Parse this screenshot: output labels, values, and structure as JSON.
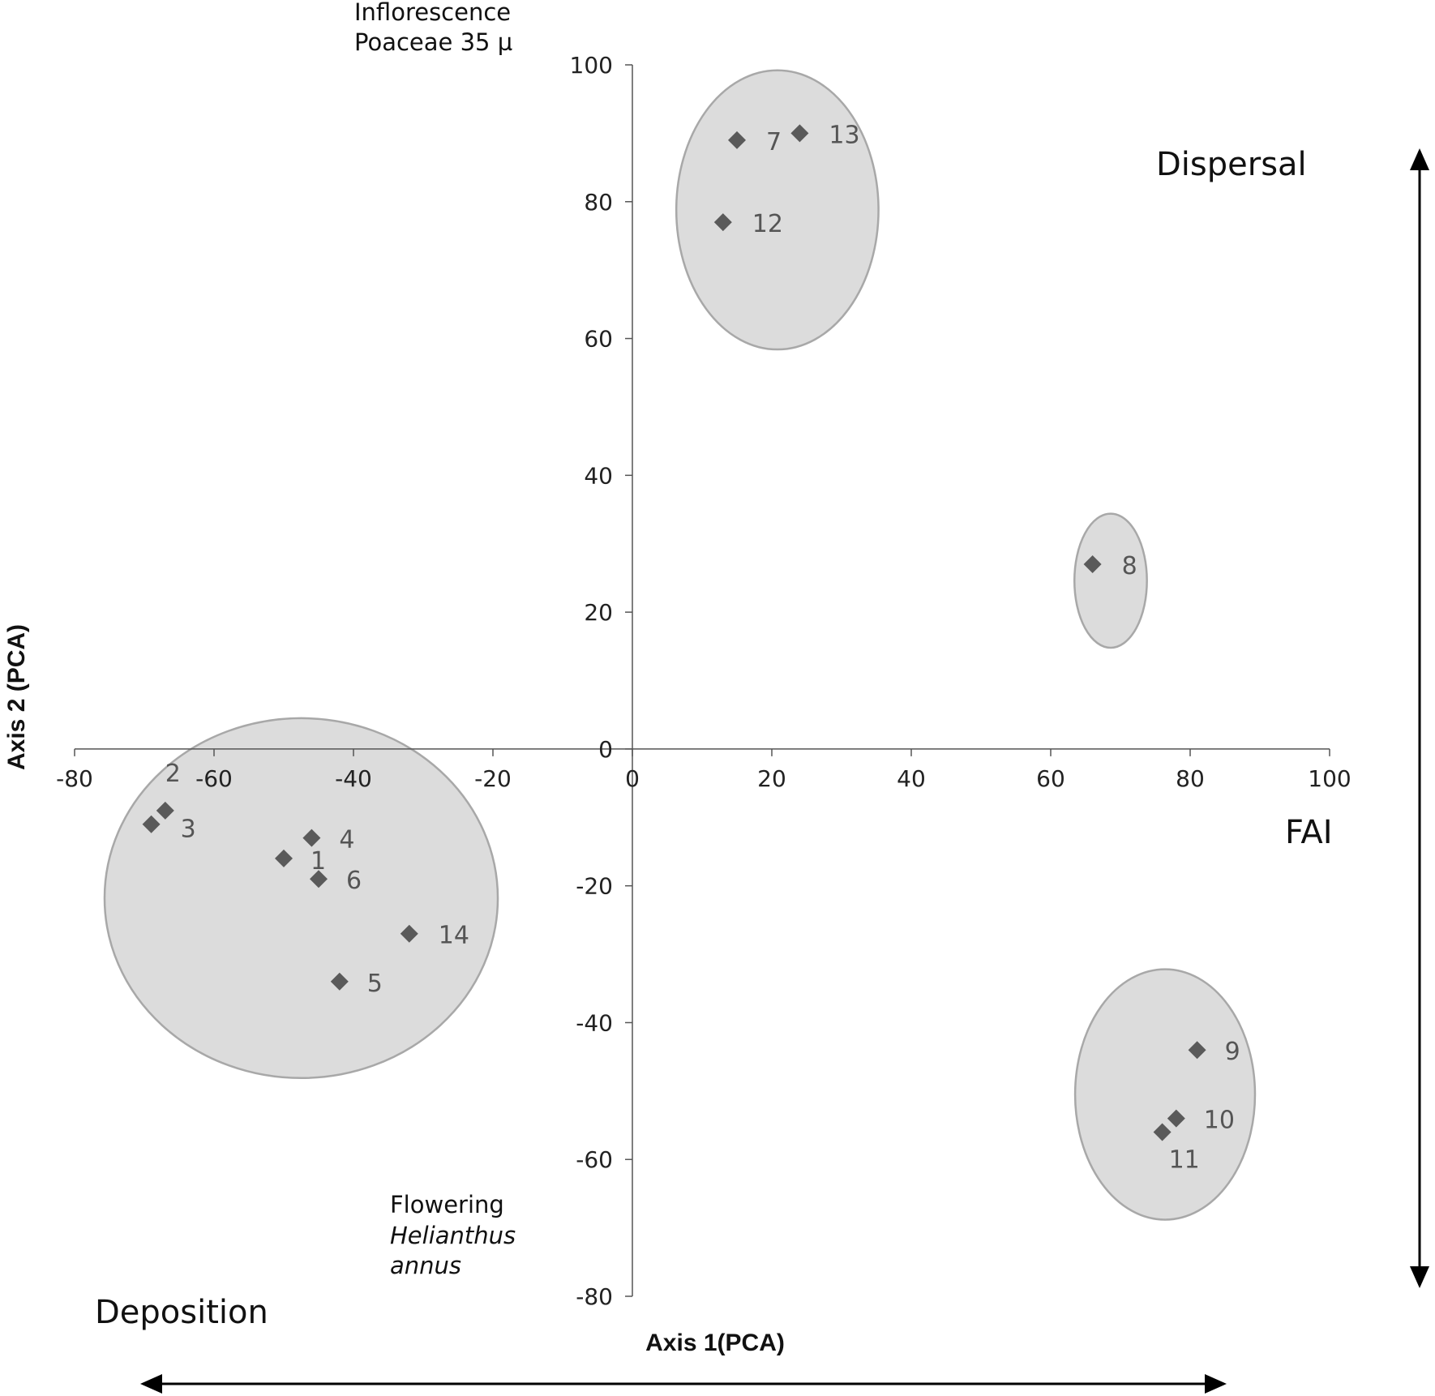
{
  "chart_data": {
    "type": "scatter",
    "xlabel": "Axis 1(PCA)",
    "ylabel": "Axis 2 (PCA)",
    "xlim": [
      -80,
      100
    ],
    "ylim": [
      -80,
      100
    ],
    "x_ticks": [
      "-80",
      "-60",
      "-40",
      "-20",
      "0",
      "20",
      "40",
      "60",
      "80",
      "100"
    ],
    "y_ticks": [
      "100",
      "80",
      "60",
      "40",
      "20",
      "0",
      "-20",
      "-40",
      "-60",
      "-80"
    ],
    "points": [
      {
        "label": "1",
        "x": -50,
        "y": -16
      },
      {
        "label": "2",
        "x": -67,
        "y": -9
      },
      {
        "label": "3",
        "x": -69,
        "y": -11
      },
      {
        "label": "4",
        "x": -46,
        "y": -13
      },
      {
        "label": "5",
        "x": -42,
        "y": -34
      },
      {
        "label": "6",
        "x": -45,
        "y": -19
      },
      {
        "label": "7",
        "x": 15,
        "y": 89
      },
      {
        "label": "8",
        "x": 66,
        "y": 27
      },
      {
        "label": "9",
        "x": 81,
        "y": -44
      },
      {
        "label": "10",
        "x": 78,
        "y": -54
      },
      {
        "label": "11",
        "x": 76,
        "y": -56
      },
      {
        "label": "12",
        "x": 13,
        "y": 77
      },
      {
        "label": "13",
        "x": 24,
        "y": 90
      },
      {
        "label": "14",
        "x": -32,
        "y": -27
      }
    ],
    "groups": [
      {
        "center": [
          -47.5,
          -21.8
        ],
        "rx": 28.2,
        "ry": 26.3
      },
      {
        "center": [
          20.8,
          78.8
        ],
        "rx": 14.5,
        "ry": 20.4
      },
      {
        "center": [
          68.6,
          24.6
        ],
        "rx": 5.2,
        "ry": 9.8
      },
      {
        "center": [
          76.4,
          -50.5
        ],
        "rx": 12.9,
        "ry": 18.3
      }
    ],
    "colors": {
      "marker": "#5a5a5a",
      "group_fill": "#dcdcdc",
      "group_stroke": "#a8a8a8",
      "axis": "#555555"
    },
    "annotations": {
      "top_left_line1": "Inflorescence",
      "top_left_line2": "Poaceae 35 µ",
      "dispersal": "Dispersal",
      "fai": "FAI",
      "flowering_line1": "Flowering",
      "flowering_line2": "Helianthus",
      "flowering_line3": "annus",
      "deposition": "Deposition"
    }
  }
}
